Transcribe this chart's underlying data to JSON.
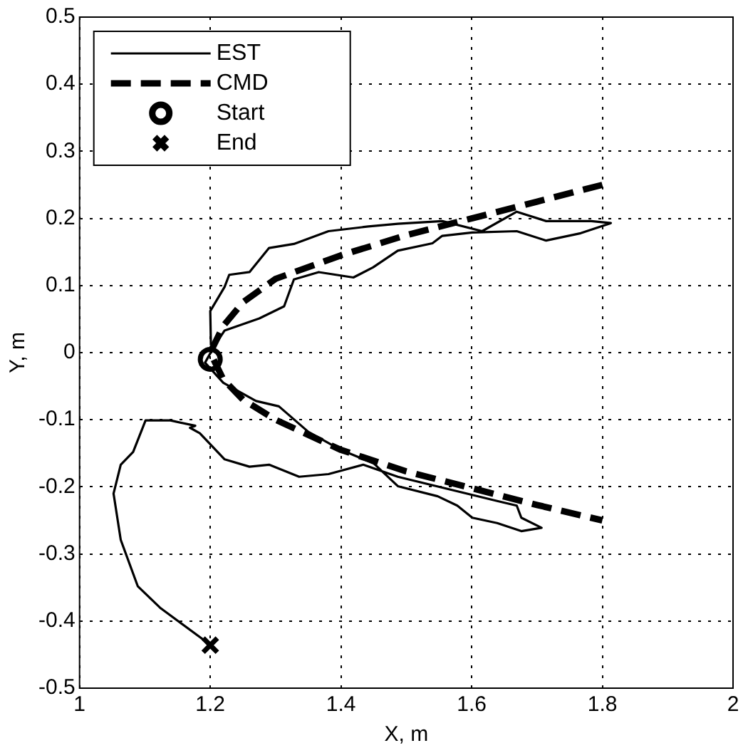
{
  "chart_data": {
    "type": "line",
    "xlabel": "X, m",
    "ylabel": "Y, m",
    "xlim": [
      1,
      2
    ],
    "xticks": [
      1,
      1.2,
      1.4,
      1.6,
      1.8,
      2
    ],
    "ylim": [
      -0.5,
      0.5
    ],
    "yticks": [
      -0.5,
      -0.4,
      -0.3,
      -0.2,
      -0.1,
      0,
      0.1,
      0.2,
      0.3,
      0.4,
      0.5
    ],
    "grid": true,
    "legend": "top left",
    "series": [
      {
        "name": "EST",
        "type": "line",
        "color": "#000000",
        "marker": "none",
        "line_style": "solid",
        "x": [
          1.201,
          1.2,
          1.222,
          1.229,
          1.26,
          1.29,
          1.328,
          1.381,
          1.442,
          1.487,
          1.555,
          1.616,
          1.669,
          1.714,
          1.783,
          1.813,
          1.767,
          1.714,
          1.669,
          1.601,
          1.555,
          1.54,
          1.487,
          1.449,
          1.419,
          1.366,
          1.328,
          1.313,
          1.275,
          1.222,
          1.207,
          1.192,
          1.22,
          1.27,
          1.305,
          1.35,
          1.4,
          1.45,
          1.487,
          1.548,
          1.578,
          1.601,
          1.639,
          1.676,
          1.707,
          1.676,
          1.669,
          1.639,
          1.563,
          1.487,
          1.434,
          1.381,
          1.336,
          1.29,
          1.26,
          1.222,
          1.184,
          1.169,
          1.177,
          1.139,
          1.101,
          1.082,
          1.063,
          1.052,
          1.063,
          1.089,
          1.123,
          1.201
        ],
        "values": [
          0.011,
          0.062,
          0.098,
          0.116,
          0.12,
          0.156,
          0.162,
          0.181,
          0.188,
          0.192,
          0.196,
          0.181,
          0.21,
          0.196,
          0.196,
          0.193,
          0.178,
          0.167,
          0.181,
          0.179,
          0.174,
          0.163,
          0.152,
          0.127,
          0.112,
          0.12,
          0.109,
          0.069,
          0.051,
          0.033,
          0.011,
          -0.015,
          -0.045,
          -0.072,
          -0.08,
          -0.118,
          -0.145,
          -0.165,
          -0.199,
          -0.214,
          -0.228,
          -0.246,
          -0.254,
          -0.266,
          -0.261,
          -0.246,
          -0.228,
          -0.221,
          -0.203,
          -0.185,
          -0.167,
          -0.181,
          -0.185,
          -0.167,
          -0.17,
          -0.159,
          -0.12,
          -0.112,
          -0.109,
          -0.101,
          -0.101,
          -0.148,
          -0.167,
          -0.21,
          -0.279,
          -0.348,
          -0.38,
          -0.436
        ]
      },
      {
        "name": "CMD",
        "type": "line",
        "color": "#000000",
        "marker": "none",
        "line_style": "dashed",
        "x": [
          1.8,
          1.7,
          1.6,
          1.5,
          1.4,
          1.3,
          1.25,
          1.22,
          1.2,
          1.22,
          1.25,
          1.3,
          1.4,
          1.5,
          1.6,
          1.7,
          1.8
        ],
        "values": [
          0.25,
          0.225,
          0.2,
          0.175,
          0.145,
          0.11,
          0.075,
          0.04,
          0,
          -0.04,
          -0.07,
          -0.1,
          -0.145,
          -0.177,
          -0.202,
          -0.227,
          -0.25
        ]
      },
      {
        "name": "Start",
        "type": "scatter",
        "color": "#000000",
        "marker": "circle",
        "x": [
          1.2
        ],
        "values": [
          -0.01
        ]
      },
      {
        "name": "End",
        "type": "scatter",
        "color": "#000000",
        "marker": "cross",
        "x": [
          1.2
        ],
        "values": [
          -0.436
        ]
      }
    ]
  }
}
